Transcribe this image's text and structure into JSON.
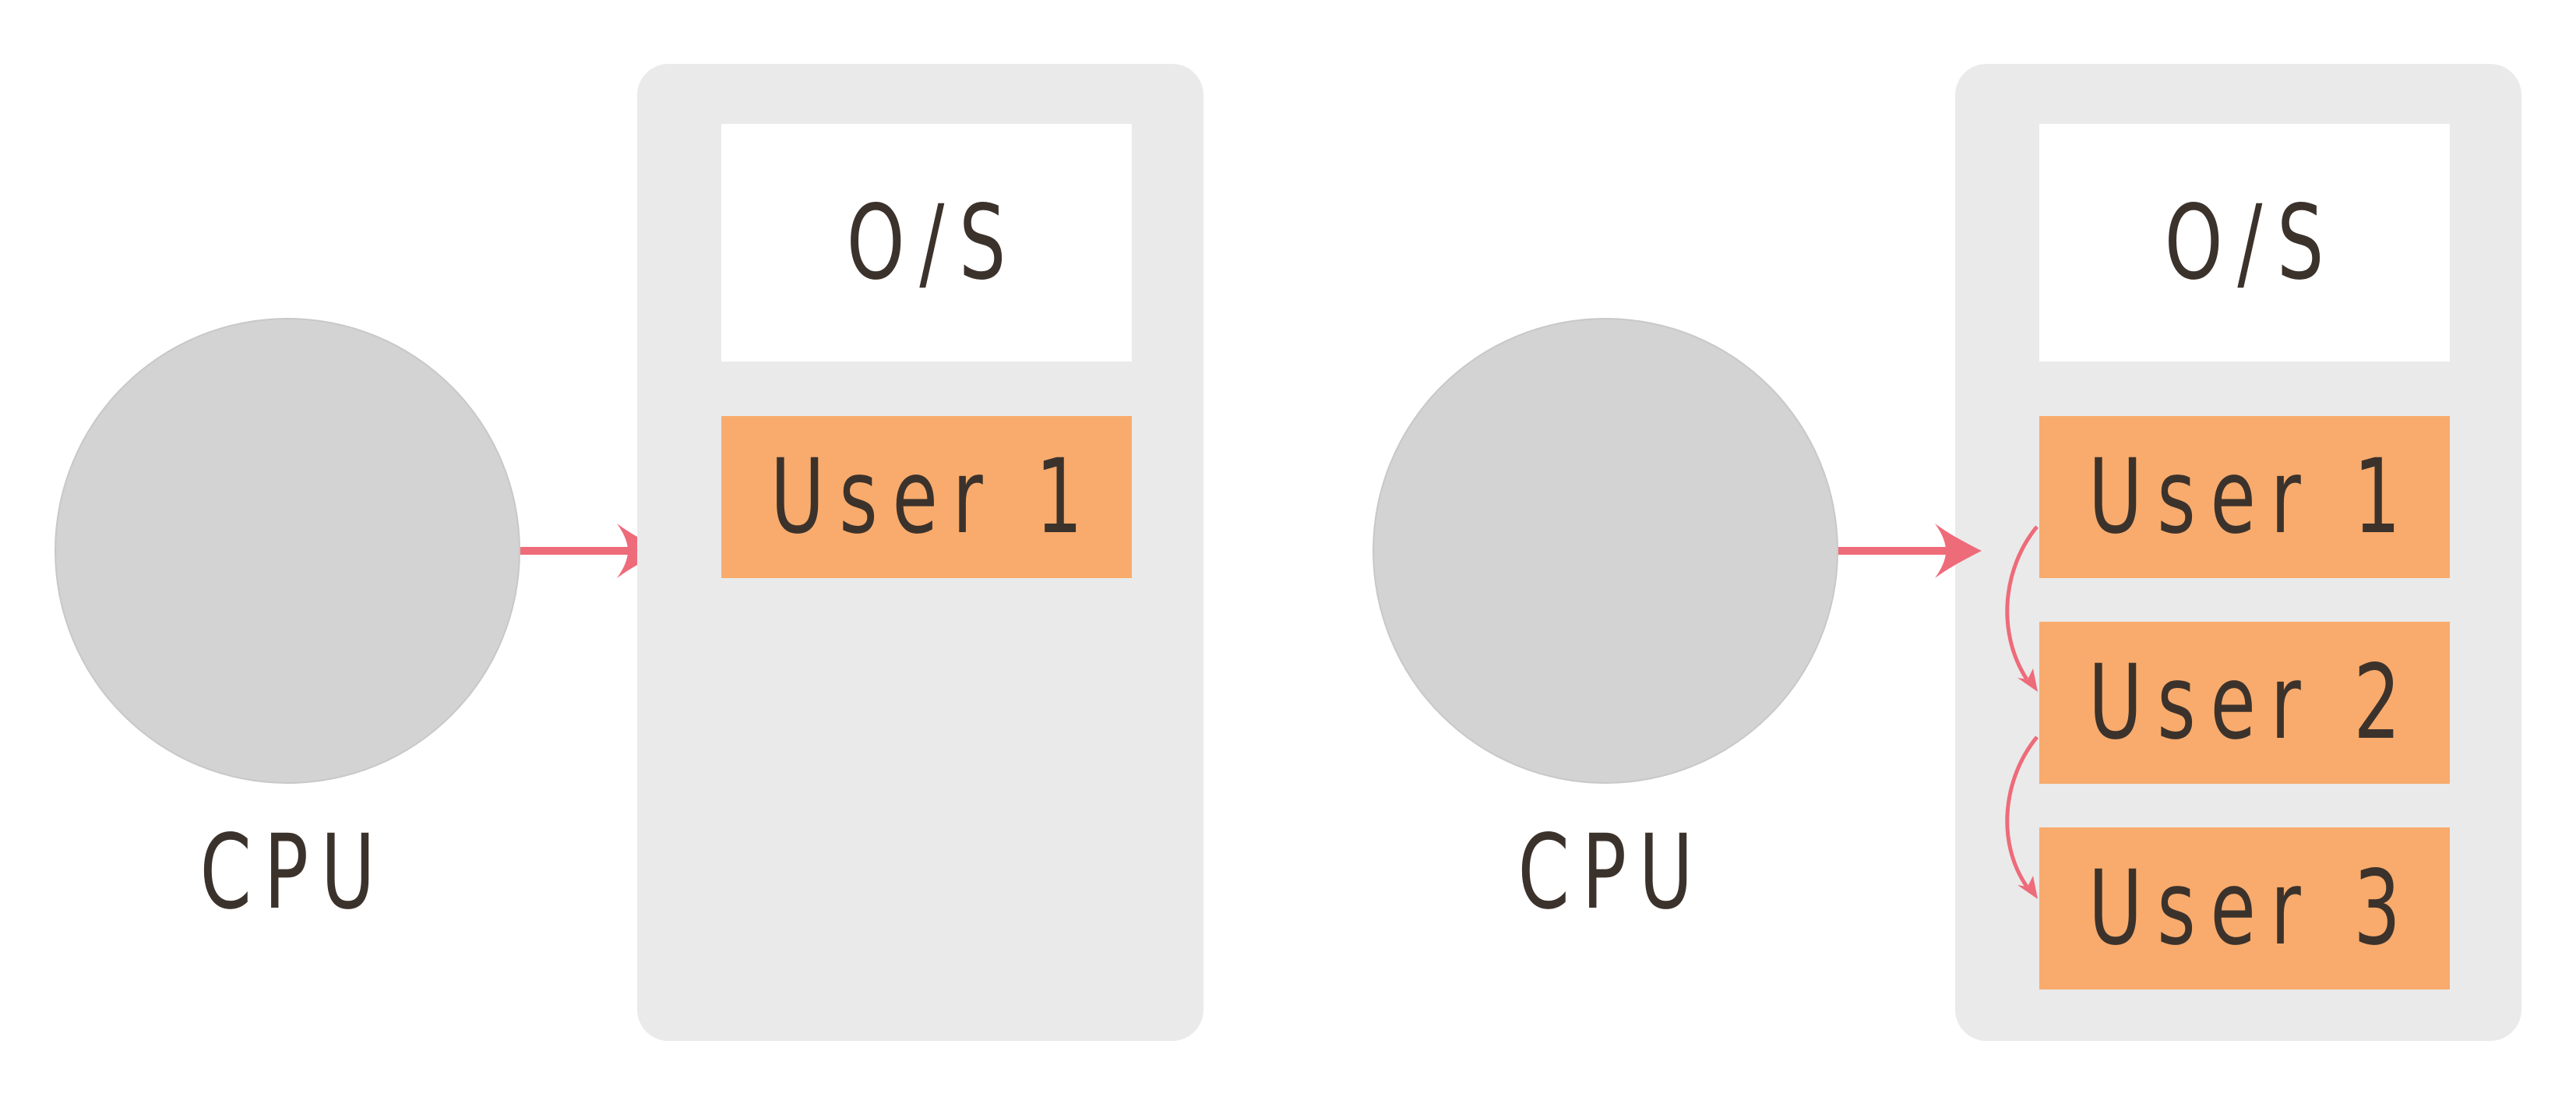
{
  "colors": {
    "cpu_fill": "#d3d3d3",
    "memory_fill": "#eaeaea",
    "os_fill": "#ffffff",
    "user_fill": "#f8ab6c",
    "arrow": "#ee6b7a",
    "text": "#3c322c"
  },
  "left": {
    "cpu_label": "CPU",
    "os_label": "O/S",
    "users": [
      "User 1"
    ]
  },
  "right": {
    "cpu_label": "CPU",
    "os_label": "O/S",
    "users": [
      "User 1",
      "User 2",
      "User 3"
    ]
  }
}
